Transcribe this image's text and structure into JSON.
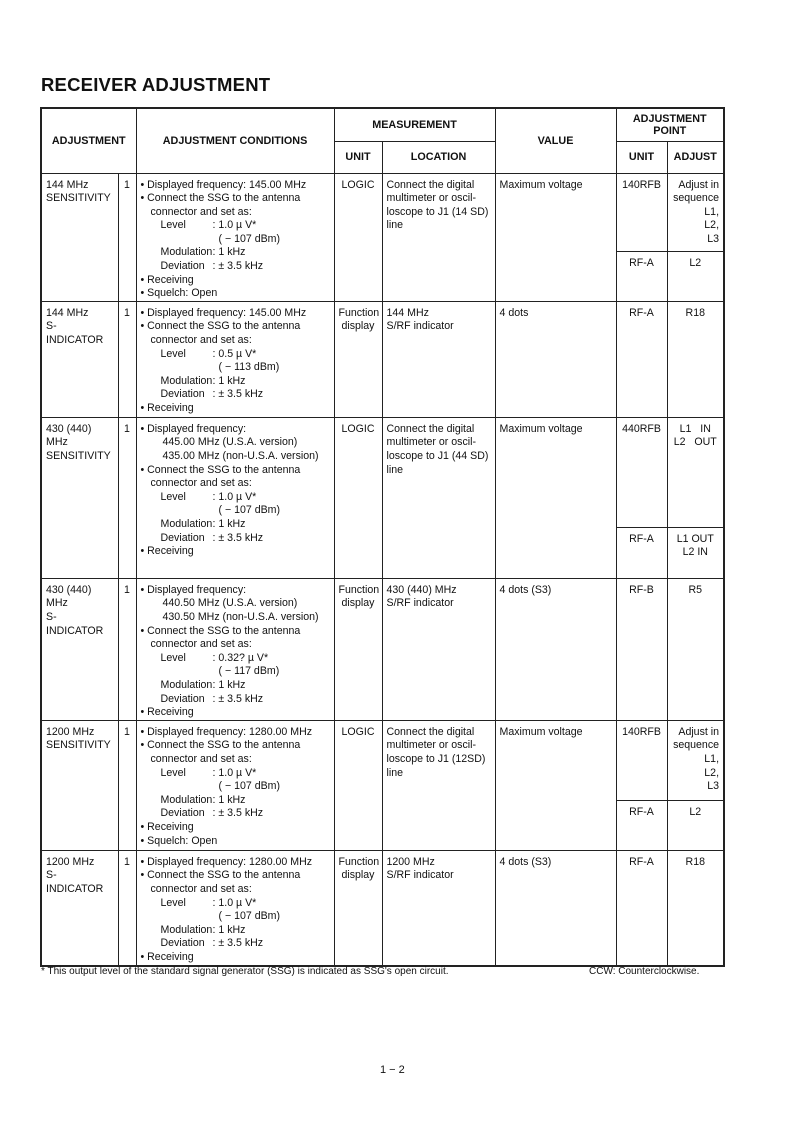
{
  "title": "RECEIVER ADJUSTMENT",
  "headers": {
    "adjustment": "ADJUSTMENT",
    "conditions": "ADJUSTMENT CONDITIONS",
    "measurement": "MEASUREMENT",
    "unit": "UNIT",
    "location": "LOCATION",
    "value": "VALUE",
    "adjustment_point": "ADJUSTMENT POINT",
    "ap_unit": "UNIT",
    "ap_adjust": "ADJUST"
  },
  "rows": [
    {
      "name": [
        "144 MHz",
        "SENSITIVITY"
      ],
      "step": "1",
      "conditions": [
        {
          "t": "b",
          "text": "• Displayed frequency:  145.00 MHz"
        },
        {
          "t": "b",
          "text": "• Connect the SSG to the antenna"
        },
        {
          "t": "c",
          "text": "connector and set as:"
        },
        {
          "t": "p",
          "label": "Level",
          "value": ":  1.0 µ V*"
        },
        {
          "t": "v",
          "text": "( − 107 dBm)"
        },
        {
          "t": "p",
          "label": "Modulation",
          "value": ":  1 kHz"
        },
        {
          "t": "p",
          "label": "Deviation",
          "value": ":  ± 3.5 kHz"
        },
        {
          "t": "b",
          "text": "• Receiving"
        },
        {
          "t": "b",
          "text": "• Squelch: Open"
        }
      ],
      "unit": [
        "LOGIC"
      ],
      "location": [
        "Connect the digital",
        "multimeter or oscil-",
        "loscope to J1 (14 SD)",
        "line"
      ],
      "value": "Maximum voltage",
      "points": [
        {
          "unit": "140RFB",
          "adjust": [
            "Adjust in",
            "sequence",
            "L1,",
            "L2,",
            "L3"
          ]
        },
        {
          "unit": "RF-A",
          "adjust": [
            "L2"
          ]
        }
      ]
    },
    {
      "name": [
        "144 MHz",
        "S-",
        "INDICATOR"
      ],
      "step": "1",
      "conditions": [
        {
          "t": "b",
          "text": "• Displayed frequency:  145.00 MHz"
        },
        {
          "t": "b",
          "text": "• Connect the SSG to the antenna"
        },
        {
          "t": "c",
          "text": "connector and set as:"
        },
        {
          "t": "p",
          "label": "Level",
          "value": ":  0.5 µ V*"
        },
        {
          "t": "v",
          "text": "( − 113 dBm)"
        },
        {
          "t": "p",
          "label": "Modulation",
          "value": ":  1 kHz"
        },
        {
          "t": "p",
          "label": "Deviation",
          "value": ":  ± 3.5 kHz"
        },
        {
          "t": "b",
          "text": "• Receiving"
        }
      ],
      "unit": [
        "Function",
        "display"
      ],
      "location": [
        "144 MHz",
        "S/RF indicator"
      ],
      "value": "4 dots",
      "points": [
        {
          "unit": "RF-A",
          "adjust": [
            "R18"
          ]
        }
      ]
    },
    {
      "name": [
        "430 (440)",
        "MHz",
        "SENSITIVITY"
      ],
      "step": "1",
      "conditions": [
        {
          "t": "b",
          "text": "• Displayed frequency:"
        },
        {
          "t": "i",
          "text": "445.00 MHz (U.S.A. version)"
        },
        {
          "t": "i",
          "text": "435.00 MHz (non-U.S.A. version)"
        },
        {
          "t": "b",
          "text": "• Connect the SSG to the antenna"
        },
        {
          "t": "c",
          "text": "connector and set as:"
        },
        {
          "t": "p",
          "label": "Level",
          "value": ":  1.0 µ V*"
        },
        {
          "t": "v",
          "text": "( − 107 dBm)"
        },
        {
          "t": "p",
          "label": "Modulation",
          "value": ":  1 kHz"
        },
        {
          "t": "p",
          "label": "Deviation",
          "value": ":  ± 3.5 kHz"
        },
        {
          "t": "b",
          "text": "• Receiving"
        }
      ],
      "unit": [
        "LOGIC"
      ],
      "location": [
        "Connect the digital",
        "multimeter or oscil-",
        "loscope to J1 (44 SD)",
        "line"
      ],
      "value": "Maximum voltage",
      "points": [
        {
          "unit": "440RFB",
          "adjust": [
            "L1   IN",
            "L2   OUT"
          ]
        },
        {
          "unit": "RF-A",
          "adjust": [
            "L1 OUT",
            "L2 IN"
          ]
        }
      ]
    },
    {
      "name": [
        "430 (440)",
        "MHz",
        "S-",
        "INDICATOR"
      ],
      "step": "1",
      "conditions": [
        {
          "t": "b",
          "text": "• Displayed frequency:"
        },
        {
          "t": "i",
          "text": "440.50 MHz (U.S.A. version)"
        },
        {
          "t": "i",
          "text": "430.50 MHz (non-U.S.A. version)"
        },
        {
          "t": "b",
          "text": "• Connect the SSG to the antenna"
        },
        {
          "t": "c",
          "text": "connector and set as:"
        },
        {
          "t": "p",
          "label": "Level",
          "value": ":  0.32?  µ V*"
        },
        {
          "t": "v",
          "text": "( − 117 dBm)"
        },
        {
          "t": "p",
          "label": "Modulation",
          "value": ":  1 kHz"
        },
        {
          "t": "p",
          "label": "Deviation",
          "value": ":  ± 3.5 kHz"
        },
        {
          "t": "b",
          "text": "• Receiving"
        }
      ],
      "unit": [
        "Function",
        "display"
      ],
      "location": [
        "430 (440) MHz",
        "S/RF indicator"
      ],
      "value": "4 dots (S3)",
      "points": [
        {
          "unit": "RF-B",
          "adjust": [
            "R5"
          ]
        }
      ]
    },
    {
      "name": [
        "1200 MHz",
        "SENSITIVITY"
      ],
      "step": "1",
      "conditions": [
        {
          "t": "b",
          "text": "• Displayed frequency:  1280.00 MHz"
        },
        {
          "t": "b",
          "text": "• Connect the SSG to the antenna"
        },
        {
          "t": "c",
          "text": "connector and set as:"
        },
        {
          "t": "p",
          "label": "Level",
          "value": ":  1.0 µ V*"
        },
        {
          "t": "v",
          "text": "( − 107 dBm)"
        },
        {
          "t": "p",
          "label": "Modulation",
          "value": ":  1 kHz"
        },
        {
          "t": "p",
          "label": "Deviation",
          "value": ":  ± 3.5 kHz"
        },
        {
          "t": "b",
          "text": "• Receiving"
        },
        {
          "t": "b",
          "text": "• Squelch: Open"
        }
      ],
      "unit": [
        "LOGIC"
      ],
      "location": [
        "Connect the digital",
        "multimeter or oscil-",
        "loscope to J1 (12SD)",
        "line"
      ],
      "value": "Maximum voltage",
      "points": [
        {
          "unit": "140RFB",
          "adjust": [
            "Adjust in",
            "sequence",
            "L1,",
            "L2,",
            "L3"
          ]
        },
        {
          "unit": "RF-A",
          "adjust": [
            "L2"
          ]
        }
      ]
    },
    {
      "name": [
        "1200 MHz",
        "S-",
        "INDICATOR"
      ],
      "step": "1",
      "conditions": [
        {
          "t": "b",
          "text": "• Displayed frequency:  1280.00 MHz"
        },
        {
          "t": "b",
          "text": "• Connect the SSG to the antenna"
        },
        {
          "t": "c",
          "text": "connector and set as:"
        },
        {
          "t": "p",
          "label": "Level",
          "value": ":  1.0 µ V*"
        },
        {
          "t": "v",
          "text": "( − 107 dBm)"
        },
        {
          "t": "p",
          "label": "Modulation",
          "value": ":  1 kHz"
        },
        {
          "t": "p",
          "label": "Deviation",
          "value": ":  ± 3.5 kHz"
        },
        {
          "t": "b",
          "text": "• Receiving"
        }
      ],
      "unit": [
        "Function",
        "display"
      ],
      "location": [
        "1200 MHz",
        "S/RF indicator"
      ],
      "value": "4 dots (S3)",
      "points": [
        {
          "unit": "RF-A",
          "adjust": [
            "R18"
          ]
        }
      ]
    }
  ],
  "footnote": "* This output level of the standard signal generator (SSG) is indicated as SSG's open circuit.",
  "ccw_note": "CCW: Counterclockwise.",
  "page_number": "1 − 2"
}
